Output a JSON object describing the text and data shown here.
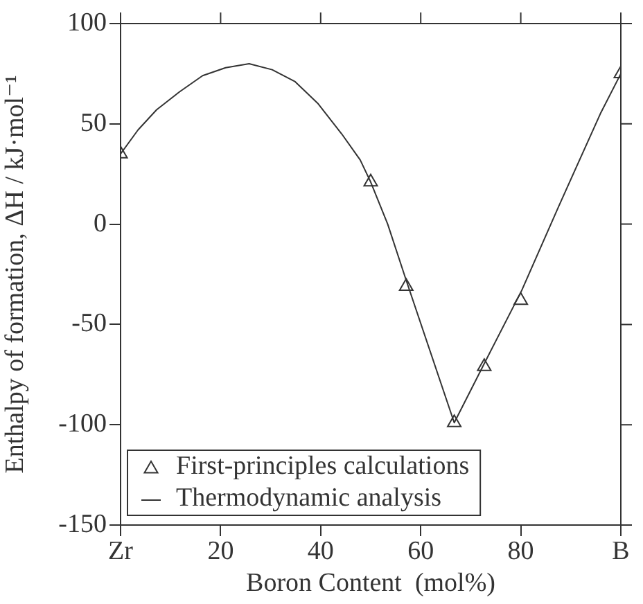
{
  "chart_data": {
    "type": "scatter",
    "xlabel": "Boron Content  (mol%)",
    "ylabel": "Enthalpy of formation, ΔH / kJ·mol⁻¹",
    "xlim": [
      0,
      100
    ],
    "xticks": [
      {
        "value": 0,
        "label": "Zr"
      },
      20,
      40,
      60,
      80,
      {
        "value": 100,
        "label": "B"
      }
    ],
    "ylim": [
      -150,
      100
    ],
    "yticks": [
      -150,
      -100,
      -50,
      0,
      50,
      100
    ],
    "legend": "bottom left",
    "series": [
      {
        "name": "First-principles calculations",
        "type": "scatter",
        "marker": "triangle",
        "color": "#333333",
        "x": [
          0,
          50,
          57.1,
          66.7,
          72.7,
          80,
          100
        ],
        "values": [
          35,
          21,
          -31,
          -99,
          -71,
          -38,
          75
        ]
      },
      {
        "name": "Thermodynamic analysis",
        "type": "line",
        "marker": "none",
        "line_style": "solid",
        "color": "#333333",
        "x": [
          0,
          3.5,
          7.2,
          11.8,
          16.4,
          21,
          25.7,
          30.3,
          34.9,
          39.5,
          44.2,
          47.9,
          50,
          53.4,
          57.1,
          66.7,
          72.8,
          80.2,
          87.6,
          95.9,
          100
        ],
        "values": [
          35,
          47,
          57,
          66,
          74,
          78,
          80,
          77,
          71,
          60,
          45,
          32,
          21,
          0,
          -28,
          -99,
          -69,
          -33,
          9,
          55,
          75
        ]
      }
    ]
  }
}
